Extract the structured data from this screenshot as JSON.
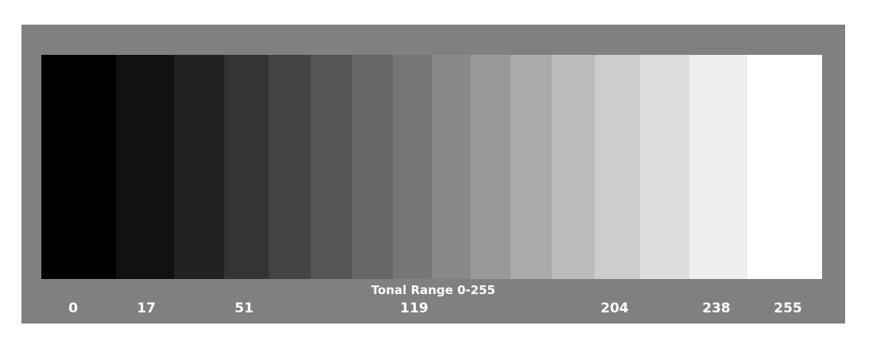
{
  "tonal_scale": {
    "caption": "Tonal Range 0-255",
    "steps": [
      {
        "value": 0,
        "color": "#000000"
      },
      {
        "value": 17,
        "color": "#111111"
      },
      {
        "value": 34,
        "color": "#222222"
      },
      {
        "value": 51,
        "color": "#333333"
      },
      {
        "value": 68,
        "color": "#444444"
      },
      {
        "value": 85,
        "color": "#555555"
      },
      {
        "value": 102,
        "color": "#666666"
      },
      {
        "value": 119,
        "color": "#777777"
      },
      {
        "value": 136,
        "color": "#888888"
      },
      {
        "value": 153,
        "color": "#999999"
      },
      {
        "value": 170,
        "color": "#aaaaaa"
      },
      {
        "value": 187,
        "color": "#bbbbbb"
      },
      {
        "value": 204,
        "color": "#cccccc"
      },
      {
        "value": 221,
        "color": "#dddddd"
      },
      {
        "value": 238,
        "color": "#eeeeee"
      },
      {
        "value": 255,
        "color": "#ffffff"
      }
    ],
    "labels": [
      "0",
      "17",
      "51",
      "119",
      "204",
      "238",
      "255"
    ],
    "panel_color": "#808080"
  }
}
